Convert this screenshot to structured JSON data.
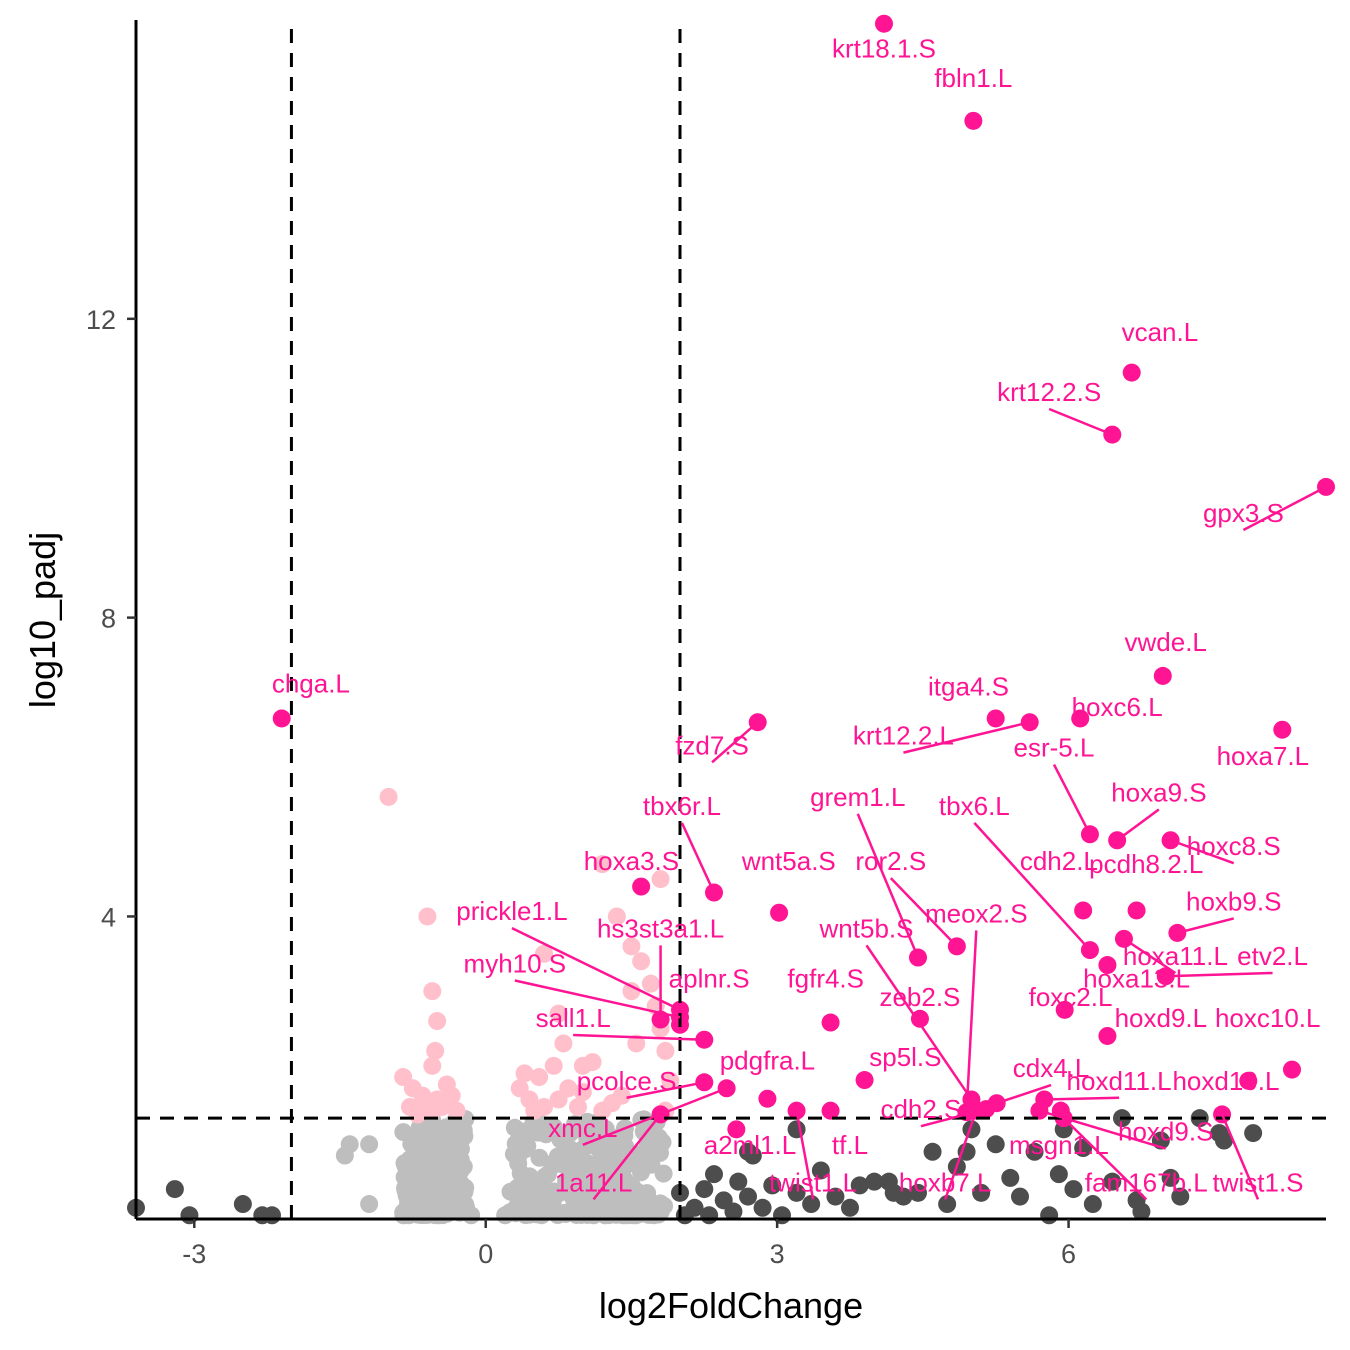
{
  "chart_data": {
    "type": "scatter",
    "title": "",
    "xlabel": "log2FoldChange",
    "ylabel": "log10_padj",
    "xlim": [
      -3.6,
      8.65
    ],
    "ylim": [
      -0.05,
      16.0
    ],
    "x_ticks": [
      -3,
      0,
      3,
      6
    ],
    "x_tick_labels": [
      "-3",
      "0",
      "3",
      "6"
    ],
    "y_ticks": [
      4,
      8,
      12
    ],
    "y_tick_labels": [
      "4",
      "8",
      "12"
    ],
    "grid": false,
    "legend": "none",
    "thresholds": {
      "log2fc": [
        -2,
        2
      ],
      "log10_padj": 1.3
    },
    "colors": {
      "significant": "#ff1493",
      "pvalue_only": "#ffc0cb",
      "foldchange_only": "#4d4d4d",
      "not_significant": "#bebebe",
      "threshold_line": "#000000"
    },
    "series": [
      {
        "group": "significant",
        "points": [
          {
            "label": "krt18.1.S",
            "x": 4.1,
            "y": 15.95,
            "lx": 4.1,
            "ly": 15.5
          },
          {
            "label": "fbln1.L",
            "x": 5.02,
            "y": 14.65,
            "lx": 5.02,
            "ly": 15.1
          },
          {
            "label": "vcan.L",
            "x": 6.65,
            "y": 11.28,
            "lx": 6.94,
            "ly": 11.7
          },
          {
            "label": "krt12.2.S",
            "x": 6.45,
            "y": 10.45,
            "lx": 5.8,
            "ly": 10.9
          },
          {
            "label": "gpx3.S",
            "x": 8.65,
            "y": 9.75,
            "lx": 7.8,
            "ly": 9.28
          },
          {
            "label": "vwde.L",
            "x": 6.97,
            "y": 7.22,
            "lx": 7.0,
            "ly": 7.55
          },
          {
            "label": "chga.L",
            "x": -2.1,
            "y": 6.65,
            "lx": -1.8,
            "ly": 7.0
          },
          {
            "label": "itga4.S",
            "x": 5.25,
            "y": 6.65,
            "lx": 4.97,
            "ly": 6.96
          },
          {
            "label": "krt12.2.L",
            "x": 5.6,
            "y": 6.6,
            "lx": 4.3,
            "ly": 6.3
          },
          {
            "label": "hoxc6.L",
            "x": 6.12,
            "y": 6.65,
            "lx": 6.5,
            "ly": 6.68
          },
          {
            "label": "fzd7.S",
            "x": 2.8,
            "y": 6.6,
            "lx": 2.33,
            "ly": 6.17
          },
          {
            "label": "hoxa7.L",
            "x": 8.2,
            "y": 6.5,
            "lx": 8.0,
            "ly": 6.03
          },
          {
            "label": "esr-5.L",
            "x": 6.22,
            "y": 5.1,
            "lx": 5.85,
            "ly": 6.14
          },
          {
            "label": "hoxa9.S",
            "x": 6.5,
            "y": 5.02,
            "lx": 6.93,
            "ly": 5.54
          },
          {
            "label": "hoxc8.S",
            "x": 7.05,
            "y": 5.02,
            "lx": 7.7,
            "ly": 4.82
          },
          {
            "label": "tbx6r.L",
            "x": 2.35,
            "y": 4.32,
            "lx": 2.02,
            "ly": 5.36
          },
          {
            "label": "grem1.L",
            "x": 4.45,
            "y": 3.45,
            "lx": 3.83,
            "ly": 5.48
          },
          {
            "label": "tbx6.L",
            "x": 6.22,
            "y": 3.55,
            "lx": 5.03,
            "ly": 5.36
          },
          {
            "label": "hoxa3.S",
            "x": 1.6,
            "y": 4.4,
            "lx": 1.5,
            "ly": 4.62
          },
          {
            "label": "wnt5a.S",
            "x": 3.02,
            "y": 4.05,
            "lx": 3.12,
            "ly": 4.62
          },
          {
            "label": "ror2.S",
            "x": 4.85,
            "y": 3.6,
            "lx": 4.17,
            "ly": 4.62
          },
          {
            "label": "cdh2.L",
            "x": 6.15,
            "y": 4.08,
            "lx": 5.9,
            "ly": 4.62
          },
          {
            "label": "pcdh8.2.L",
            "x": 6.7,
            "y": 4.08,
            "lx": 6.8,
            "ly": 4.58
          },
          {
            "label": "hoxb9.S",
            "x": 7.12,
            "y": 3.78,
            "lx": 7.7,
            "ly": 4.08
          },
          {
            "label": "prickle1.L",
            "x": 2.0,
            "y": 2.75,
            "lx": 0.27,
            "ly": 3.95
          },
          {
            "label": "hs3st3a1.L",
            "x": 1.8,
            "y": 2.62,
            "lx": 1.8,
            "ly": 3.72
          },
          {
            "label": "wnt5b.S",
            "x": 5.0,
            "y": 1.55,
            "lx": 3.92,
            "ly": 3.72
          },
          {
            "label": "meox2.S",
            "x": 4.95,
            "y": 1.38,
            "lx": 5.05,
            "ly": 3.92
          },
          {
            "label": "hoxa11.L",
            "x": 6.57,
            "y": 3.7,
            "lx": 7.1,
            "ly": 3.35
          },
          {
            "label": "hoxa13.L",
            "x": 6.4,
            "y": 3.35,
            "lx": 6.7,
            "ly": 3.05
          },
          {
            "label": "etv2.L",
            "x": 7.0,
            "y": 3.2,
            "lx": 8.1,
            "ly": 3.35
          },
          {
            "label": "myh10.S",
            "x": 2.0,
            "y": 2.65,
            "lx": 0.3,
            "ly": 3.25
          },
          {
            "label": "aplnr.S",
            "x": 2.0,
            "y": 2.55,
            "lx": 2.3,
            "ly": 3.05
          },
          {
            "label": "fgfr4.S",
            "x": 3.55,
            "y": 2.58,
            "lx": 3.5,
            "ly": 3.05
          },
          {
            "label": "zeb2.S",
            "x": 4.47,
            "y": 2.63,
            "lx": 4.47,
            "ly": 2.8
          },
          {
            "label": "foxc2.L",
            "x": 5.96,
            "y": 2.75,
            "lx": 6.02,
            "ly": 2.8
          },
          {
            "label": "sall1.L",
            "x": 2.25,
            "y": 2.35,
            "lx": 0.9,
            "ly": 2.52
          },
          {
            "label": "hoxd9.L",
            "x": 6.4,
            "y": 2.4,
            "lx": 6.95,
            "ly": 2.52
          },
          {
            "label": "hoxc10.L",
            "x": 8.3,
            "y": 1.95,
            "lx": 8.05,
            "ly": 2.52
          },
          {
            "label": "pdgfra.L",
            "x": 2.9,
            "y": 1.56,
            "lx": 2.9,
            "ly": 1.95
          },
          {
            "label": "sp5l.S",
            "x": 3.9,
            "y": 1.81,
            "lx": 4.32,
            "ly": 2.0
          },
          {
            "label": "cdx4.L",
            "x": 5.26,
            "y": 1.5,
            "lx": 5.82,
            "ly": 1.85
          },
          {
            "label": "hoxd10.L",
            "x": 7.85,
            "y": 1.8,
            "lx": 7.62,
            "ly": 1.68
          },
          {
            "label": "hoxd11.L",
            "x": 5.75,
            "y": 1.55,
            "lx": 6.52,
            "ly": 1.68
          },
          {
            "label": "pcolce.S",
            "x": 2.25,
            "y": 1.78,
            "lx": 1.45,
            "ly": 1.68
          },
          {
            "label": "cdh2.S",
            "x": 5.15,
            "y": 1.42,
            "lx": 4.48,
            "ly": 1.3
          },
          {
            "label": "xmc.L",
            "x": 2.48,
            "y": 1.7,
            "lx": 1.0,
            "ly": 1.05
          },
          {
            "label": "a2ml1.L",
            "x": 2.58,
            "y": 1.15,
            "lx": 2.72,
            "ly": 0.82
          },
          {
            "label": "tf.L",
            "x": 3.55,
            "y": 1.4,
            "lx": 3.75,
            "ly": 0.82
          },
          {
            "label": "msgn1.L",
            "x": 5.92,
            "y": 1.4,
            "lx": 5.9,
            "ly": 0.82
          },
          {
            "label": "hoxd9.S",
            "x": 5.7,
            "y": 1.4,
            "lx": 7.0,
            "ly": 1.0
          },
          {
            "label": "hoxb7.L",
            "x": 5.05,
            "y": 1.4,
            "lx": 4.73,
            "ly": 0.32
          },
          {
            "label": "twist1.L",
            "x": 3.2,
            "y": 1.4,
            "lx": 3.37,
            "ly": 0.32
          },
          {
            "label": "1a11.L",
            "x": 1.8,
            "y": 1.35,
            "lx": 1.11,
            "ly": 0.32
          },
          {
            "label": "fam167b.L",
            "x": 5.95,
            "y": 1.3,
            "lx": 6.8,
            "ly": 0.32
          },
          {
            "label": "twist1.S",
            "x": 7.58,
            "y": 1.35,
            "lx": 7.95,
            "ly": 0.32
          }
        ]
      },
      {
        "group": "pvalue_only",
        "points": [
          [
            -1.0,
            5.6
          ],
          [
            -0.6,
            4.0
          ],
          [
            -0.55,
            3.0
          ],
          [
            -0.5,
            2.6
          ],
          [
            -0.52,
            2.2
          ],
          [
            -0.55,
            2.0
          ],
          [
            -0.85,
            1.85
          ],
          [
            -0.75,
            1.7
          ],
          [
            -0.65,
            1.6
          ],
          [
            -0.5,
            1.55
          ],
          [
            -0.78,
            1.45
          ],
          [
            -0.55,
            1.4
          ],
          [
            -0.45,
            1.45
          ],
          [
            -0.3,
            1.4
          ],
          [
            -0.7,
            1.35
          ],
          [
            -0.62,
            1.5
          ],
          [
            -0.4,
            1.75
          ],
          [
            -0.35,
            1.6
          ],
          [
            0.4,
            1.9
          ],
          [
            0.55,
            1.85
          ],
          [
            0.35,
            1.7
          ],
          [
            0.45,
            1.55
          ],
          [
            0.6,
            1.45
          ],
          [
            0.5,
            1.4
          ],
          [
            0.75,
            1.55
          ],
          [
            0.85,
            1.7
          ],
          [
            1.0,
            1.65
          ],
          [
            0.95,
            1.45
          ],
          [
            0.7,
            2.0
          ],
          [
            1.1,
            2.05
          ],
          [
            1.0,
            2.0
          ],
          [
            0.8,
            2.3
          ],
          [
            0.75,
            2.7
          ],
          [
            0.6,
            3.5
          ],
          [
            1.2,
            4.7
          ],
          [
            1.35,
            4.0
          ],
          [
            1.5,
            3.6
          ],
          [
            1.6,
            3.4
          ],
          [
            1.8,
            4.5
          ],
          [
            1.7,
            3.1
          ],
          [
            1.75,
            2.8
          ],
          [
            1.8,
            2.5
          ],
          [
            1.85,
            2.2
          ],
          [
            1.9,
            1.8
          ],
          [
            1.85,
            1.4
          ],
          [
            1.55,
            2.3
          ],
          [
            1.4,
            1.6
          ],
          [
            1.2,
            1.4
          ],
          [
            1.3,
            1.5
          ],
          [
            1.5,
            3.0
          ]
        ]
      },
      {
        "group": "foldchange_only",
        "points": [
          [
            -3.6,
            0.1
          ],
          [
            -3.2,
            0.35
          ],
          [
            -3.05,
            0.0
          ],
          [
            -2.5,
            0.15
          ],
          [
            -2.3,
            0.0
          ],
          [
            -2.2,
            0.0
          ],
          [
            2.0,
            0.3
          ],
          [
            2.05,
            0.0
          ],
          [
            2.15,
            0.1
          ],
          [
            2.25,
            0.35
          ],
          [
            2.3,
            0.0
          ],
          [
            2.35,
            0.55
          ],
          [
            2.45,
            0.2
          ],
          [
            2.55,
            0.05
          ],
          [
            2.6,
            0.45
          ],
          [
            2.7,
            0.25
          ],
          [
            2.75,
            0.8
          ],
          [
            2.85,
            0.1
          ],
          [
            2.95,
            0.4
          ],
          [
            3.05,
            0.0
          ],
          [
            3.2,
            0.3
          ],
          [
            3.35,
            0.15
          ],
          [
            3.45,
            0.6
          ],
          [
            3.6,
            0.25
          ],
          [
            3.75,
            0.1
          ],
          [
            3.85,
            0.4
          ],
          [
            4.0,
            0.45
          ],
          [
            4.15,
            0.45
          ],
          [
            4.3,
            0.25
          ],
          [
            4.45,
            0.3
          ],
          [
            4.6,
            0.85
          ],
          [
            4.75,
            0.15
          ],
          [
            4.85,
            0.65
          ],
          [
            5.0,
            1.15
          ],
          [
            5.1,
            0.3
          ],
          [
            5.25,
            0.95
          ],
          [
            5.4,
            0.5
          ],
          [
            5.5,
            0.25
          ],
          [
            5.65,
            0.85
          ],
          [
            5.8,
            0.0
          ],
          [
            5.9,
            0.55
          ],
          [
            5.95,
            1.15
          ],
          [
            6.05,
            0.35
          ],
          [
            6.15,
            0.9
          ],
          [
            6.25,
            0.15
          ],
          [
            6.45,
            0.45
          ],
          [
            6.55,
            1.3
          ],
          [
            6.7,
            0.2
          ],
          [
            6.75,
            0.05
          ],
          [
            6.95,
            1.0
          ],
          [
            7.05,
            0.5
          ],
          [
            7.15,
            0.25
          ],
          [
            7.35,
            1.3
          ],
          [
            7.55,
            1.1
          ],
          [
            7.6,
            1.0
          ],
          [
            7.9,
            1.1
          ],
          [
            4.2,
            0.3
          ],
          [
            2.7,
            0.85
          ],
          [
            3.2,
            1.15
          ],
          [
            4.95,
            0.85
          ]
        ]
      }
    ]
  }
}
